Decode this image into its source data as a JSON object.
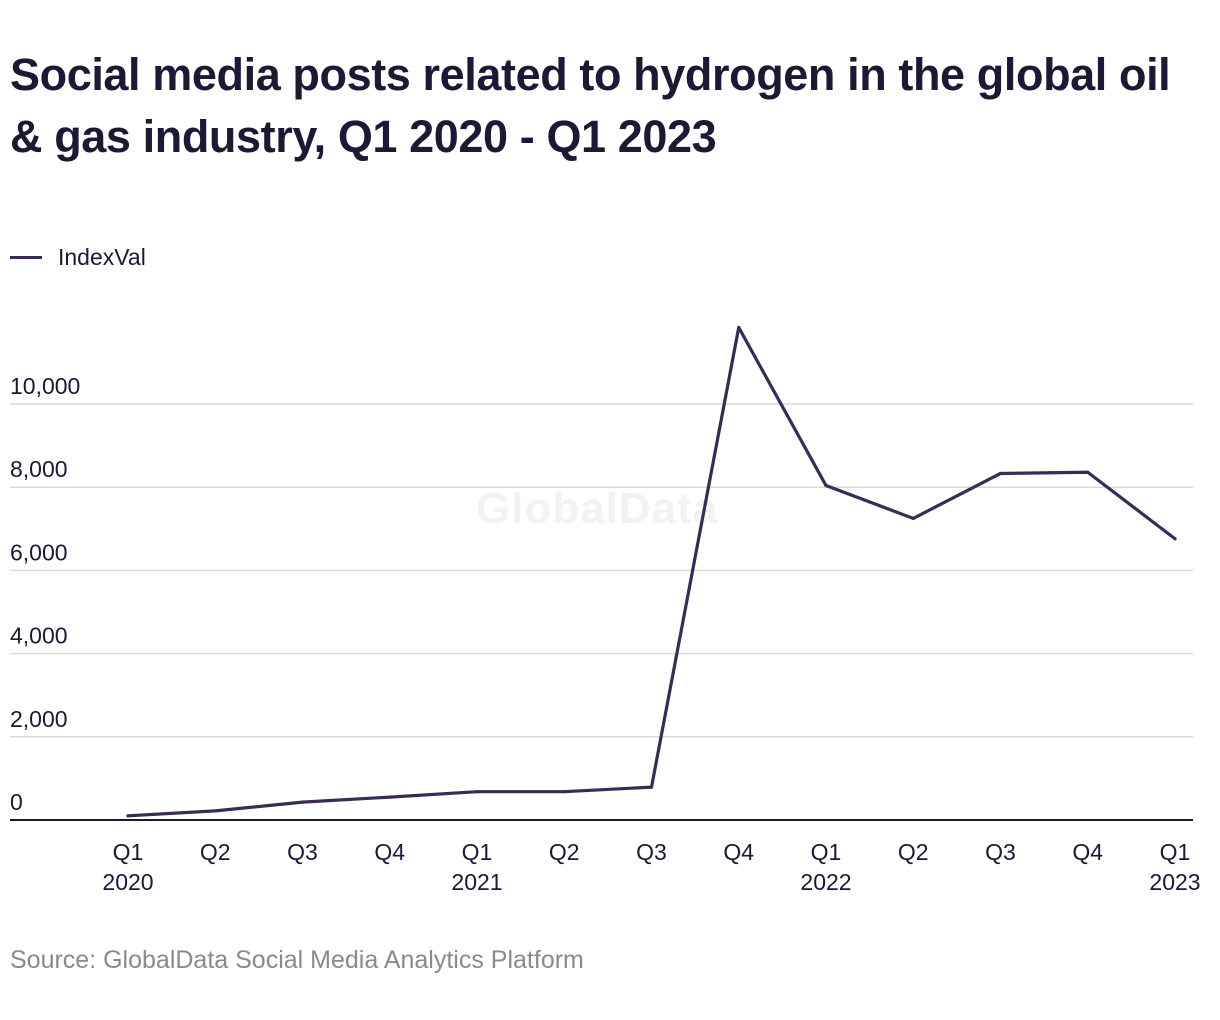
{
  "title": "Social media posts related to hydrogen in the global oil & gas industry, Q1 2020 - Q1 2023",
  "legend": {
    "label": "IndexVal"
  },
  "watermark": "GlobalData",
  "source": "Source: GlobalData Social Media Analytics Platform",
  "colors": {
    "line": "#3a2a55",
    "grid": "#d9d9d9",
    "axis": "#1b1934",
    "text": "#1b1934",
    "source": "#8a8a8a"
  },
  "chart_data": {
    "type": "line",
    "title": "Social media posts related to hydrogen in the global oil & gas industry, Q1 2020 - Q1 2023",
    "xlabel": "",
    "ylabel": "",
    "categories": [
      [
        "Q1",
        "2020"
      ],
      [
        "Q2",
        ""
      ],
      [
        "Q3",
        ""
      ],
      [
        "Q4",
        ""
      ],
      [
        "Q1",
        "2021"
      ],
      [
        "Q2",
        ""
      ],
      [
        "Q3",
        ""
      ],
      [
        "Q4",
        ""
      ],
      [
        "Q1",
        "2022"
      ],
      [
        "Q2",
        ""
      ],
      [
        "Q3",
        ""
      ],
      [
        "Q4",
        ""
      ],
      [
        "Q1",
        "2023"
      ]
    ],
    "series": [
      {
        "name": "IndexVal",
        "values": [
          100,
          220,
          430,
          550,
          680,
          680,
          790,
          11840,
          8040,
          7250,
          8330,
          8360,
          6760
        ]
      }
    ],
    "yticks": [
      0,
      2000,
      4000,
      6000,
      8000,
      10000
    ],
    "ytick_labels": [
      "0",
      "2,000",
      "4,000",
      "6,000",
      "8,000",
      "10,000"
    ],
    "ylim": [
      0,
      12000
    ],
    "grid": true,
    "legend_position": "top-left"
  }
}
